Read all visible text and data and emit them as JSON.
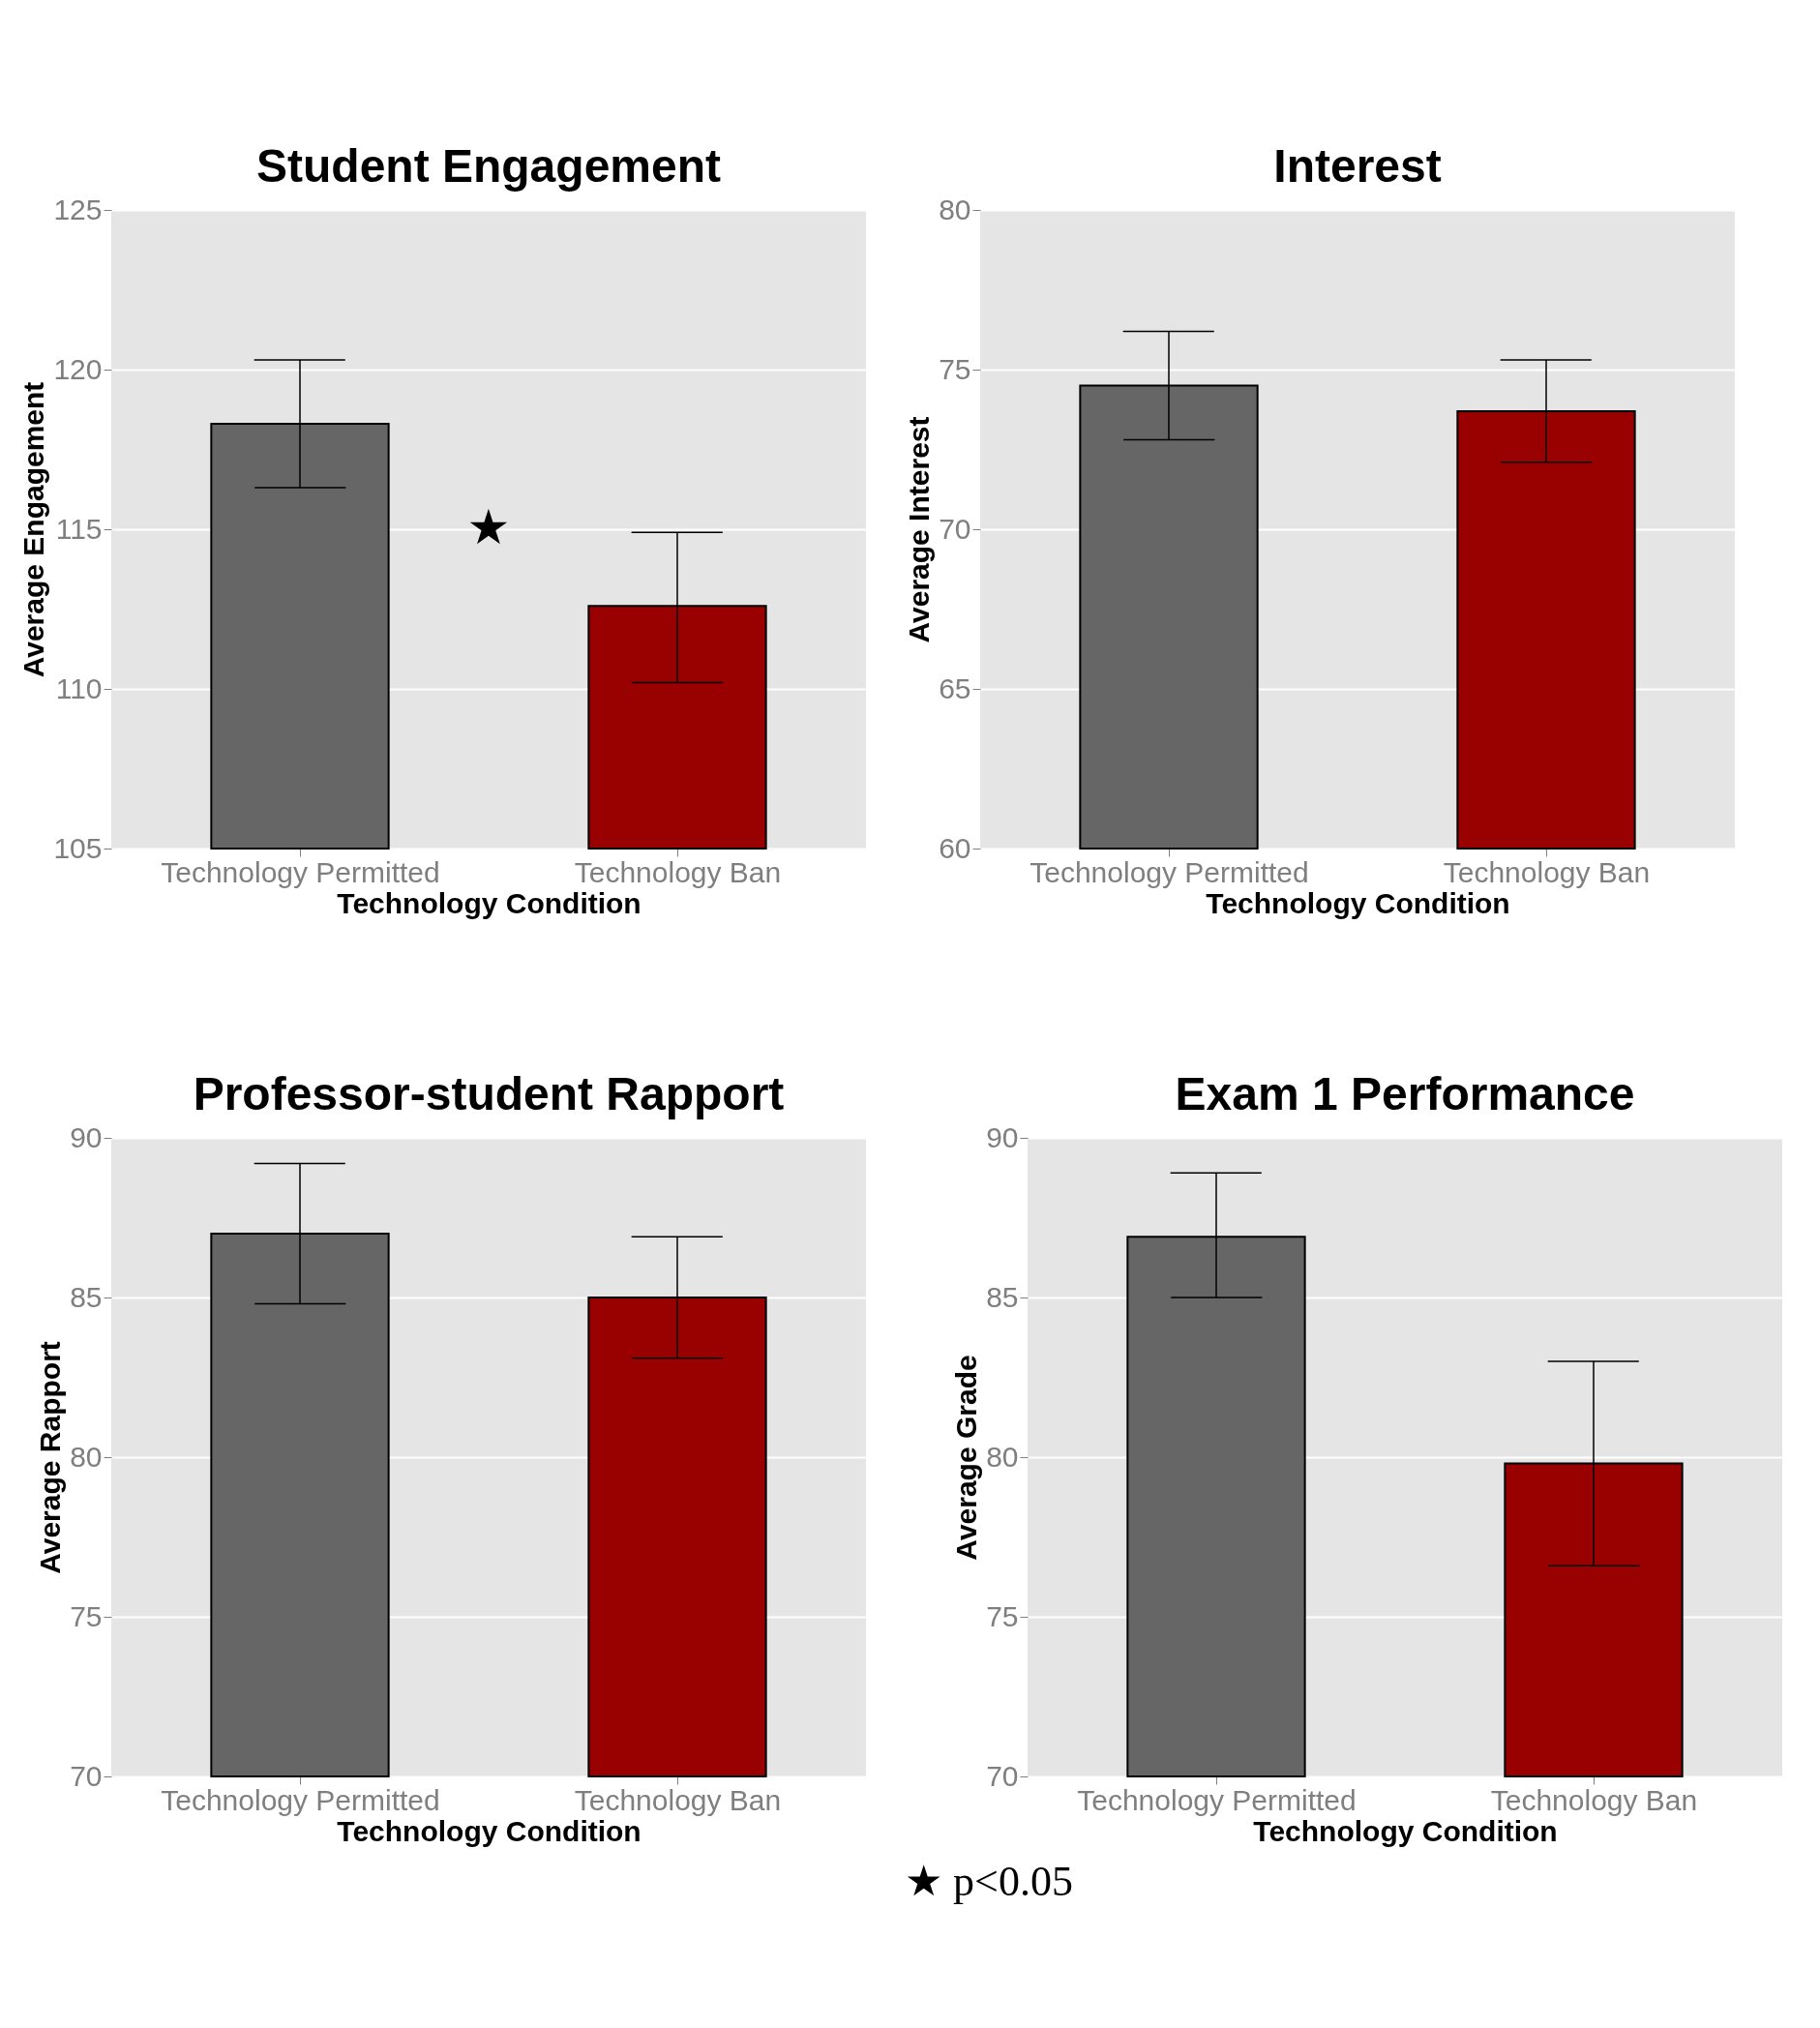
{
  "chart_data": [
    {
      "type": "bar",
      "title": "Student Engagement",
      "xlabel": "Technology Condition",
      "ylabel": "Average Engagement",
      "categories": [
        "Technology Permitted",
        "Technology Ban"
      ],
      "colors": [
        "#666666",
        "#990000"
      ],
      "values": [
        118.3,
        112.6
      ],
      "errors": [
        [
          116.3,
          120.3
        ],
        [
          110.2,
          114.9
        ]
      ],
      "ylim": [
        105,
        125
      ],
      "yticks": [
        105,
        110,
        115,
        120,
        125
      ],
      "grid": "y",
      "annotations": [
        "★"
      ]
    },
    {
      "type": "bar",
      "title": "Interest",
      "xlabel": "Technology Condition",
      "ylabel": "Average Interest",
      "categories": [
        "Technology Permitted",
        "Technology Ban"
      ],
      "colors": [
        "#666666",
        "#990000"
      ],
      "values": [
        74.5,
        73.7
      ],
      "errors": [
        [
          72.8,
          76.2
        ],
        [
          72.1,
          75.3
        ]
      ],
      "ylim": [
        60,
        80
      ],
      "yticks": [
        60,
        65,
        70,
        75,
        80
      ],
      "grid": "y"
    },
    {
      "type": "bar",
      "title": "Professor-student Rapport",
      "xlabel": "Technology Condition",
      "ylabel": "Average Rapport",
      "categories": [
        "Technology Permitted",
        "Technology Ban"
      ],
      "colors": [
        "#666666",
        "#990000"
      ],
      "values": [
        87.0,
        85.0
      ],
      "errors": [
        [
          84.8,
          89.2
        ],
        [
          83.1,
          86.9
        ]
      ],
      "ylim": [
        70,
        90
      ],
      "yticks": [
        70,
        75,
        80,
        85,
        90
      ],
      "grid": "y"
    },
    {
      "type": "bar",
      "title": "Exam 1 Performance",
      "xlabel": "Technology Condition",
      "ylabel": "Average Grade",
      "categories": [
        "Technology Permitted",
        "Technology Ban"
      ],
      "colors": [
        "#666666",
        "#990000"
      ],
      "values": [
        86.9,
        79.8
      ],
      "errors": [
        [
          85.0,
          88.9
        ],
        [
          76.6,
          83.0
        ]
      ],
      "ylim": [
        70,
        90
      ],
      "yticks": [
        70,
        75,
        80,
        85,
        90
      ],
      "grid": "y",
      "annotations": [
        "★ p<0.05"
      ]
    }
  ]
}
